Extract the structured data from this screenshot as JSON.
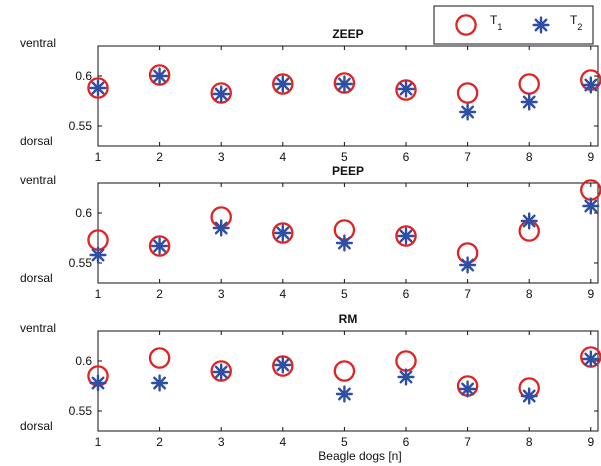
{
  "chart_data": [
    {
      "type": "scatter",
      "title": "ZEEP",
      "categories": [
        "1",
        "2",
        "3",
        "4",
        "5",
        "6",
        "7",
        "8",
        "9"
      ],
      "ylim": [
        0.53,
        0.63
      ],
      "yticks": [
        "0.6",
        "0.55"
      ],
      "ytick_values": [
        0.6,
        0.55
      ],
      "ylabel_top": "ventral",
      "ylabel_bottom": "dorsal",
      "series": [
        {
          "name": "T1",
          "marker": "circle",
          "values": [
            0.588,
            0.601,
            0.583,
            0.592,
            0.593,
            0.586,
            0.583,
            0.592,
            0.596
          ]
        },
        {
          "name": "T2",
          "marker": "star",
          "values": [
            0.588,
            0.6,
            0.582,
            0.592,
            0.592,
            0.587,
            0.564,
            0.574,
            0.591
          ]
        }
      ]
    },
    {
      "type": "scatter",
      "title": "PEEP",
      "categories": [
        "1",
        "2",
        "3",
        "4",
        "5",
        "6",
        "7",
        "8",
        "9"
      ],
      "ylim": [
        0.53,
        0.63
      ],
      "yticks": [
        "0.6",
        "0.55"
      ],
      "ytick_values": [
        0.6,
        0.55
      ],
      "ylabel_top": "ventral",
      "ylabel_bottom": "dorsal",
      "series": [
        {
          "name": "T1",
          "marker": "circle",
          "values": [
            0.573,
            0.567,
            0.596,
            0.58,
            0.583,
            0.577,
            0.56,
            0.582,
            0.623
          ]
        },
        {
          "name": "T2",
          "marker": "star",
          "values": [
            0.558,
            0.567,
            0.585,
            0.58,
            0.57,
            0.577,
            0.548,
            0.592,
            0.607
          ]
        }
      ]
    },
    {
      "type": "scatter",
      "title": "RM",
      "categories": [
        "1",
        "2",
        "3",
        "4",
        "5",
        "6",
        "7",
        "8",
        "9"
      ],
      "ylim": [
        0.53,
        0.63
      ],
      "yticks": [
        "0.6",
        "0.55"
      ],
      "ytick_values": [
        0.6,
        0.55
      ],
      "ylabel_top": "ventral",
      "ylabel_bottom": "dorsal",
      "series": [
        {
          "name": "T1",
          "marker": "circle",
          "values": [
            0.585,
            0.603,
            0.59,
            0.595,
            0.59,
            0.6,
            0.575,
            0.573,
            0.604
          ]
        },
        {
          "name": "T2",
          "marker": "star",
          "values": [
            0.578,
            0.578,
            0.589,
            0.596,
            0.567,
            0.584,
            0.572,
            0.565,
            0.602
          ]
        }
      ]
    }
  ],
  "xlabel": "Beagle dogs [n]",
  "legend": {
    "position": "top-right",
    "items": [
      {
        "base": "T",
        "sub": "1",
        "marker": "circle"
      },
      {
        "base": "T",
        "sub": "2",
        "marker": "star"
      }
    ]
  },
  "colors": {
    "circle": "#e02424",
    "star": "#2f4fa3",
    "axis": "#111111"
  }
}
